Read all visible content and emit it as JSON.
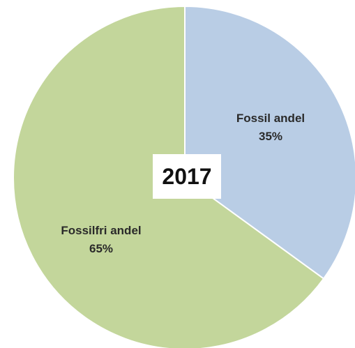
{
  "chart_data": {
    "type": "pie",
    "title": "2017",
    "slices": [
      {
        "label": "Fossil andel",
        "value": 35,
        "value_label": "35%",
        "color": "#b9cde5"
      },
      {
        "label": "Fossilfri andel",
        "value": 65,
        "value_label": "65%",
        "color": "#c3d69b"
      }
    ],
    "start_angle": "top (12 o'clock)",
    "direction": "clockwise",
    "edge_color": "#ffffff",
    "legend": "none"
  }
}
